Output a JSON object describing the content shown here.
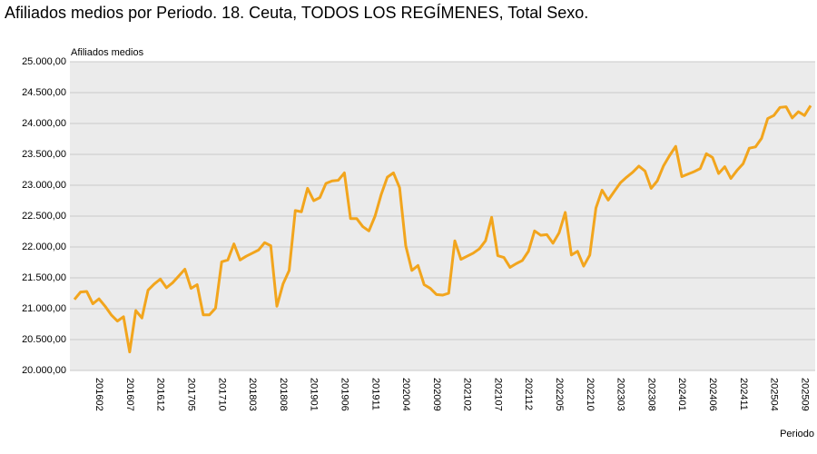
{
  "chart_data": {
    "type": "line",
    "title": "Afiliados medios por Periodo. 18. Ceuta, TODOS LOS REGÍMENES, Total Sexo.",
    "y_label": "Afiliados medios",
    "x_label": "Periodo",
    "color": "#f2a51d",
    "grid": true,
    "categories": [
      null,
      null,
      null,
      null,
      "201602",
      null,
      null,
      null,
      null,
      "201607",
      null,
      null,
      null,
      null,
      "201612",
      null,
      null,
      null,
      null,
      "201705",
      null,
      null,
      null,
      null,
      "201710",
      null,
      null,
      null,
      null,
      "201803",
      null,
      null,
      null,
      null,
      "201808",
      null,
      null,
      null,
      null,
      "201901",
      null,
      null,
      null,
      null,
      "201906",
      null,
      null,
      null,
      null,
      "201911",
      null,
      null,
      null,
      null,
      "202004",
      null,
      null,
      null,
      null,
      "202009",
      null,
      null,
      null,
      null,
      "202102",
      null,
      null,
      null,
      null,
      "202107",
      null,
      null,
      null,
      null,
      "202112",
      null,
      null,
      null,
      null,
      "202205",
      null,
      null,
      null,
      null,
      "202210",
      null,
      null,
      null,
      null,
      "202303",
      null,
      null,
      null,
      null,
      "202308",
      null,
      null,
      null,
      null,
      "202401",
      null,
      null,
      null,
      null,
      "202406",
      null,
      null,
      null,
      null,
      "202411",
      null,
      null,
      null,
      null,
      "202504",
      null,
      null,
      null,
      null,
      "202509",
      null
    ],
    "values": [
      21150,
      21270,
      21280,
      21080,
      21160,
      21040,
      20900,
      20800,
      20870,
      20300,
      20970,
      20850,
      21300,
      21400,
      21480,
      21340,
      21420,
      21530,
      21640,
      21330,
      21390,
      20900,
      20900,
      21010,
      21760,
      21790,
      22050,
      21790,
      21850,
      21900,
      21950,
      22070,
      22020,
      21040,
      21400,
      21620,
      22590,
      22570,
      22950,
      22750,
      22800,
      23030,
      23070,
      23080,
      23200,
      22460,
      22460,
      22330,
      22260,
      22500,
      22850,
      23130,
      23200,
      22960,
      22020,
      21620,
      21700,
      21390,
      21330,
      21230,
      21220,
      21250,
      22100,
      21800,
      21850,
      21900,
      21970,
      22100,
      22480,
      21860,
      21830,
      21670,
      21730,
      21780,
      21930,
      22260,
      22190,
      22200,
      22060,
      22230,
      22560,
      21870,
      21930,
      21690,
      21870,
      22630,
      22920,
      22760,
      22900,
      23040,
      23130,
      23210,
      23310,
      23230,
      22950,
      23070,
      23310,
      23480,
      23630,
      23140,
      23180,
      23220,
      23270,
      23510,
      23450,
      23190,
      23300,
      23110,
      23240,
      23350,
      23600,
      23620,
      23760,
      24080,
      24130,
      24260,
      24270,
      24090,
      24190,
      24130,
      24290
    ],
    "ylim": [
      20000,
      25000
    ],
    "yticks": [
      {
        "value": 20000,
        "label": "20.000,00"
      },
      {
        "value": 20500,
        "label": "20.500,00"
      },
      {
        "value": 21000,
        "label": "21.000,00"
      },
      {
        "value": 21500,
        "label": "21.500,00"
      },
      {
        "value": 22000,
        "label": "22.000,00"
      },
      {
        "value": 22500,
        "label": "22.500,00"
      },
      {
        "value": 23000,
        "label": "23.000,00"
      },
      {
        "value": 23500,
        "label": "23.500,00"
      },
      {
        "value": 24000,
        "label": "24.000,00"
      },
      {
        "value": 24500,
        "label": "24.500,00"
      },
      {
        "value": 25000,
        "label": "25.000,00"
      }
    ]
  }
}
